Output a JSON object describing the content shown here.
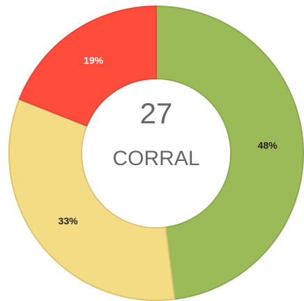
{
  "chart_data": {
    "type": "donut",
    "values": [
      48,
      33,
      19
    ],
    "value_labels": [
      "48%",
      "33%",
      "19%"
    ],
    "colors": [
      "#9bbb59",
      "#f4dc84",
      "#ff4c3b"
    ],
    "center_texts": [
      "27",
      "CORRAL"
    ]
  }
}
